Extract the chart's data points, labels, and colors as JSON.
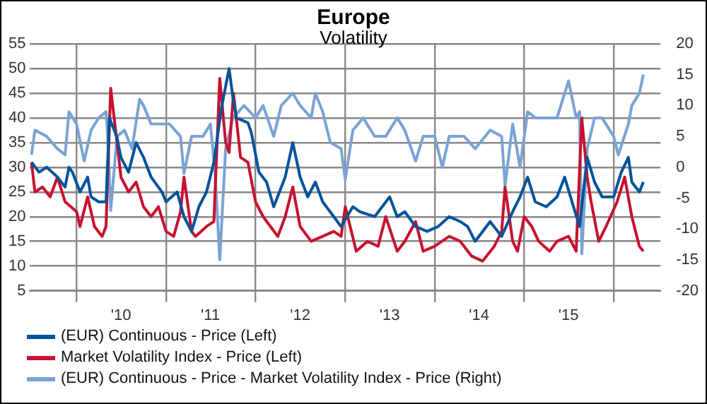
{
  "chart_data": {
    "type": "line",
    "title": "Europe",
    "subtitle": "Volatility",
    "xlim": [
      "2009-06-25",
      "2016-07-10"
    ],
    "xticks": [
      {
        "value": "2010-01-01",
        "label": null
      },
      {
        "value": "2010-07-01",
        "label": "'10"
      },
      {
        "value": "2011-01-01",
        "label": null
      },
      {
        "value": "2011-07-01",
        "label": "'11"
      },
      {
        "value": "2012-01-01",
        "label": null
      },
      {
        "value": "2012-07-01",
        "label": "'12"
      },
      {
        "value": "2013-01-01",
        "label": null
      },
      {
        "value": "2013-07-01",
        "label": "'13"
      },
      {
        "value": "2014-01-01",
        "label": null
      },
      {
        "value": "2014-07-01",
        "label": "'14"
      },
      {
        "value": "2015-01-01",
        "label": null
      },
      {
        "value": "2015-07-01",
        "label": "'15"
      },
      {
        "value": "2016-01-01",
        "label": null
      }
    ],
    "ylim": [
      5,
      55
    ],
    "yticks": [
      5,
      10,
      15,
      20,
      25,
      30,
      35,
      40,
      45,
      50,
      55
    ],
    "y2lim": [
      -20,
      20
    ],
    "y2ticks": [
      -20,
      -15,
      -10,
      -5,
      0,
      5,
      10,
      15,
      20
    ],
    "grid": true,
    "legend": "bottom",
    "series": [
      {
        "name": "(EUR) Continuous - Price (Left)",
        "color": "#00539b",
        "axis": "y",
        "x": [
          "2009-07-01",
          "2009-08-01",
          "2009-09-01",
          "2009-10-15",
          "2009-11-15",
          "2009-12-01",
          "2009-12-15",
          "2010-01-15",
          "2010-02-15",
          "2010-03-01",
          "2010-04-01",
          "2010-05-01",
          "2010-05-15",
          "2010-06-15",
          "2010-07-01",
          "2010-08-01",
          "2010-09-01",
          "2010-10-01",
          "2010-11-01",
          "2010-12-15",
          "2011-01-01",
          "2011-02-15",
          "2011-03-15",
          "2011-04-15",
          "2011-05-15",
          "2011-06-15",
          "2011-07-15",
          "2011-08-15",
          "2011-09-15",
          "2011-10-01",
          "2011-10-15",
          "2011-12-01",
          "2011-12-15",
          "2012-01-15",
          "2012-02-15",
          "2012-03-15",
          "2012-05-01",
          "2012-06-01",
          "2012-07-01",
          "2012-08-01",
          "2012-09-01",
          "2012-10-01",
          "2012-11-15",
          "2012-12-15",
          "2013-02-01",
          "2013-03-01",
          "2013-05-01",
          "2013-07-01",
          "2013-08-01",
          "2013-09-01",
          "2013-10-15",
          "2013-12-01",
          "2014-01-15",
          "2014-03-01",
          "2014-04-15",
          "2014-05-15",
          "2014-06-15",
          "2014-08-15",
          "2014-10-01",
          "2014-11-15",
          "2014-12-15",
          "2015-01-15",
          "2015-02-15",
          "2015-04-01",
          "2015-05-15",
          "2015-06-15",
          "2015-07-15",
          "2015-08-15",
          "2015-09-15",
          "2015-10-15",
          "2015-11-15",
          "2016-01-01",
          "2016-02-01",
          "2016-03-01",
          "2016-03-15",
          "2016-04-15",
          "2016-05-01"
        ],
        "values": [
          31,
          29,
          30,
          28,
          26,
          30,
          29,
          25,
          28,
          24,
          23,
          23,
          40,
          36,
          32,
          29,
          35,
          32,
          28,
          25,
          23,
          25,
          20,
          17,
          22,
          25,
          31,
          42,
          50,
          44,
          40,
          39,
          37,
          29,
          27,
          22,
          28,
          35,
          28,
          24,
          27,
          23,
          20,
          18,
          22,
          21,
          20,
          24,
          20,
          21,
          18,
          17,
          18,
          20,
          19,
          18,
          15,
          19,
          16,
          21,
          24,
          28,
          23,
          22,
          24,
          28,
          23,
          18,
          32,
          27,
          24,
          24,
          29,
          32,
          27,
          25,
          27
        ]
      },
      {
        "name": "Market Volatility Index - Price (Left)",
        "color": "#c8102e",
        "axis": "y",
        "x": [
          "2009-07-01",
          "2009-07-15",
          "2009-08-15",
          "2009-09-15",
          "2009-10-15",
          "2009-11-15",
          "2010-01-01",
          "2010-01-15",
          "2010-02-15",
          "2010-03-15",
          "2010-04-15",
          "2010-05-01",
          "2010-05-20",
          "2010-06-15",
          "2010-07-01",
          "2010-08-01",
          "2010-09-01",
          "2010-10-01",
          "2010-11-01",
          "2010-12-01",
          "2011-01-01",
          "2011-02-01",
          "2011-03-01",
          "2011-03-15",
          "2011-04-15",
          "2011-05-01",
          "2011-06-15",
          "2011-07-15",
          "2011-08-08",
          "2011-09-01",
          "2011-09-15",
          "2011-10-03",
          "2011-11-01",
          "2011-12-01",
          "2012-01-01",
          "2012-02-01",
          "2012-04-01",
          "2012-05-01",
          "2012-06-01",
          "2012-07-01",
          "2012-08-15",
          "2012-10-01",
          "2012-11-15",
          "2012-12-15",
          "2013-01-01",
          "2013-02-15",
          "2013-04-01",
          "2013-05-15",
          "2013-06-15",
          "2013-08-01",
          "2013-09-01",
          "2013-10-15",
          "2013-11-15",
          "2014-01-01",
          "2014-03-01",
          "2014-04-15",
          "2014-06-01",
          "2014-07-15",
          "2014-09-01",
          "2014-10-01",
          "2014-10-15",
          "2014-11-15",
          "2014-12-05",
          "2015-01-01",
          "2015-02-01",
          "2015-03-01",
          "2015-04-15",
          "2015-05-15",
          "2015-07-01",
          "2015-08-01",
          "2015-08-24",
          "2015-09-15",
          "2015-10-01",
          "2015-11-01",
          "2015-12-01",
          "2016-01-15",
          "2016-02-15",
          "2016-03-15",
          "2016-04-15",
          "2016-05-01"
        ],
        "values": [
          31,
          25,
          26,
          24,
          28,
          23,
          21,
          18,
          24,
          18,
          16,
          18,
          46,
          35,
          28,
          25,
          27,
          22,
          20,
          22,
          17,
          16,
          21,
          28,
          17,
          16,
          18,
          19,
          48,
          35,
          33,
          45,
          32,
          31,
          23,
          20,
          16,
          20,
          26,
          18,
          15,
          16,
          17,
          16,
          22,
          13,
          15,
          14,
          20,
          13,
          15,
          19,
          13,
          14,
          16,
          15,
          12,
          11,
          14,
          17,
          26,
          15,
          13,
          20,
          18,
          15,
          13,
          15,
          16,
          13,
          40,
          28,
          23,
          15,
          18,
          23,
          28,
          20,
          14,
          13
        ]
      },
      {
        "name": "(EUR) Continuous - Price - Market Volatility Index - Price (Right)",
        "color": "#7aa3d4",
        "axis": "y2",
        "x": [
          "2009-07-01",
          "2009-07-15",
          "2009-09-01",
          "2009-10-15",
          "2009-11-15",
          "2009-12-01",
          "2010-01-01",
          "2010-02-01",
          "2010-03-01",
          "2010-04-01",
          "2010-05-01",
          "2010-05-08",
          "2010-05-20",
          "2010-06-15",
          "2010-07-15",
          "2010-08-15",
          "2010-09-15",
          "2010-10-01",
          "2010-11-01",
          "2010-12-15",
          "2011-01-15",
          "2011-03-01",
          "2011-03-15",
          "2011-04-15",
          "2011-06-01",
          "2011-07-01",
          "2011-07-20",
          "2011-08-08",
          "2011-09-01",
          "2011-10-01",
          "2011-11-15",
          "2012-01-01",
          "2012-02-01",
          "2012-03-15",
          "2012-04-15",
          "2012-06-01",
          "2012-07-01",
          "2012-08-15",
          "2012-09-01",
          "2012-10-01",
          "2012-11-01",
          "2012-12-15",
          "2013-01-01",
          "2013-02-01",
          "2013-03-15",
          "2013-05-01",
          "2013-06-15",
          "2013-08-01",
          "2013-09-01",
          "2013-10-15",
          "2013-11-15",
          "2014-01-01",
          "2014-02-01",
          "2014-03-01",
          "2014-05-01",
          "2014-06-15",
          "2014-08-15",
          "2014-10-01",
          "2014-10-15",
          "2014-11-15",
          "2014-12-15",
          "2015-01-15",
          "2015-02-15",
          "2015-04-01",
          "2015-05-15",
          "2015-07-01",
          "2015-08-01",
          "2015-08-15",
          "2015-08-24",
          "2015-09-15",
          "2015-10-15",
          "2015-11-15",
          "2016-01-01",
          "2016-01-20",
          "2016-03-01",
          "2016-03-15",
          "2016-04-15",
          "2016-05-01"
        ],
        "values": [
          2,
          6,
          5,
          3,
          2,
          9,
          7,
          1,
          6,
          8,
          9,
          5,
          -7,
          5,
          6,
          3,
          11,
          10,
          7,
          7,
          7,
          5,
          -1,
          5,
          5,
          7,
          -1,
          -15,
          3,
          8,
          10,
          8,
          10,
          5,
          10,
          12,
          10,
          8,
          12,
          9,
          4,
          3,
          -2,
          6,
          8,
          5,
          5,
          8,
          6,
          1,
          5,
          5,
          0,
          5,
          5,
          3,
          6,
          5,
          -3,
          7,
          0,
          9,
          8,
          8,
          8,
          14,
          8,
          9,
          -14,
          3,
          8,
          8,
          5,
          2,
          7,
          10,
          12,
          15
        ]
      }
    ]
  }
}
